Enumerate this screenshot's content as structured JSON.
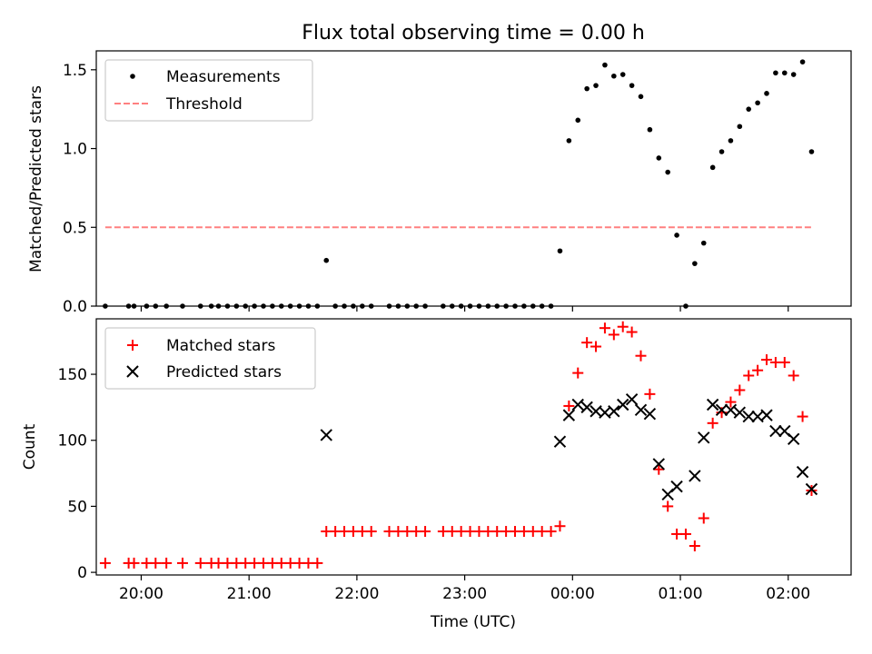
{
  "chart_data": [
    {
      "type": "scatter",
      "title": "Flux total observing time = 0.00 h",
      "ylabel": "Matched/Predicted stars",
      "xlabel": "",
      "xlim": [
        "19:35",
        "02:35"
      ],
      "ylim": [
        0,
        1.62
      ],
      "yticks": [
        0.0,
        0.5,
        1.0,
        1.5
      ],
      "ytick_labels": [
        "0.0",
        "0.5",
        "1.0",
        "1.5"
      ],
      "xticks": [
        "20:00",
        "21:00",
        "22:00",
        "23:00",
        "00:00",
        "01:00",
        "02:00"
      ],
      "show_xtick_labels": false,
      "grid": false,
      "legend": "top-left",
      "series": [
        {
          "name": "Measurements",
          "marker": "dot",
          "color": "#000000",
          "points": [
            [
              "19:40",
              0
            ],
            [
              "19:53",
              0
            ],
            [
              "19:56",
              0
            ],
            [
              "20:03",
              0
            ],
            [
              "20:08",
              0
            ],
            [
              "20:14",
              0
            ],
            [
              "20:23",
              0
            ],
            [
              "20:33",
              0
            ],
            [
              "20:39",
              0
            ],
            [
              "20:43",
              0
            ],
            [
              "20:48",
              0
            ],
            [
              "20:53",
              0
            ],
            [
              "20:58",
              0
            ],
            [
              "21:03",
              0
            ],
            [
              "21:08",
              0
            ],
            [
              "21:13",
              0
            ],
            [
              "21:18",
              0
            ],
            [
              "21:23",
              0
            ],
            [
              "21:28",
              0
            ],
            [
              "21:33",
              0
            ],
            [
              "21:38",
              0
            ],
            [
              "21:43",
              0.29
            ],
            [
              "21:48",
              0
            ],
            [
              "21:53",
              0
            ],
            [
              "21:58",
              0
            ],
            [
              "22:03",
              0
            ],
            [
              "22:08",
              0
            ],
            [
              "22:18",
              0
            ],
            [
              "22:23",
              0
            ],
            [
              "22:28",
              0
            ],
            [
              "22:33",
              0
            ],
            [
              "22:38",
              0
            ],
            [
              "22:48",
              0
            ],
            [
              "22:53",
              0
            ],
            [
              "22:58",
              0
            ],
            [
              "23:03",
              0
            ],
            [
              "23:08",
              0
            ],
            [
              "23:13",
              0
            ],
            [
              "23:18",
              0
            ],
            [
              "23:23",
              0
            ],
            [
              "23:28",
              0
            ],
            [
              "23:33",
              0
            ],
            [
              "23:38",
              0
            ],
            [
              "23:43",
              0
            ],
            [
              "23:48",
              0
            ],
            [
              "23:53",
              0.35
            ],
            [
              "23:58",
              1.05
            ],
            [
              "00:03",
              1.18
            ],
            [
              "00:08",
              1.38
            ],
            [
              "00:13",
              1.4
            ],
            [
              "00:18",
              1.53
            ],
            [
              "00:23",
              1.46
            ],
            [
              "00:28",
              1.47
            ],
            [
              "00:33",
              1.4
            ],
            [
              "00:38",
              1.33
            ],
            [
              "00:43",
              1.12
            ],
            [
              "00:48",
              0.94
            ],
            [
              "00:53",
              0.85
            ],
            [
              "00:58",
              0.45
            ],
            [
              "01:03",
              0.0
            ],
            [
              "01:08",
              0.27
            ],
            [
              "01:13",
              0.4
            ],
            [
              "01:18",
              0.88
            ],
            [
              "01:23",
              0.98
            ],
            [
              "01:28",
              1.05
            ],
            [
              "01:33",
              1.14
            ],
            [
              "01:38",
              1.25
            ],
            [
              "01:43",
              1.29
            ],
            [
              "01:48",
              1.35
            ],
            [
              "01:53",
              1.48
            ],
            [
              "01:58",
              1.48
            ],
            [
              "02:03",
              1.47
            ],
            [
              "02:08",
              1.55
            ],
            [
              "02:13",
              0.98
            ]
          ]
        },
        {
          "name": "Threshold",
          "marker": "dashed-line",
          "color": "#ff8080",
          "points": [
            [
              "19:40",
              0.5
            ],
            [
              "02:13",
              0.5
            ]
          ]
        }
      ]
    },
    {
      "type": "scatter",
      "title": "",
      "ylabel": "Count",
      "xlabel": "Time (UTC)",
      "xlim": [
        "19:35",
        "02:35"
      ],
      "ylim": [
        -2,
        192
      ],
      "yticks": [
        0,
        50,
        100,
        150
      ],
      "ytick_labels": [
        "0",
        "50",
        "100",
        "150"
      ],
      "xticks": [
        "20:00",
        "21:00",
        "22:00",
        "23:00",
        "00:00",
        "01:00",
        "02:00"
      ],
      "xtick_labels": [
        "20:00",
        "21:00",
        "22:00",
        "23:00",
        "00:00",
        "01:00",
        "02:00"
      ],
      "show_xtick_labels": true,
      "grid": false,
      "legend": "top-left",
      "series": [
        {
          "name": "Matched stars",
          "marker": "plus",
          "color": "#ff0000",
          "points": [
            [
              "19:40",
              7
            ],
            [
              "19:53",
              7
            ],
            [
              "19:56",
              7
            ],
            [
              "20:03",
              7
            ],
            [
              "20:08",
              7
            ],
            [
              "20:14",
              7
            ],
            [
              "20:23",
              7
            ],
            [
              "20:33",
              7
            ],
            [
              "20:39",
              7
            ],
            [
              "20:43",
              7
            ],
            [
              "20:48",
              7
            ],
            [
              "20:53",
              7
            ],
            [
              "20:58",
              7
            ],
            [
              "21:03",
              7
            ],
            [
              "21:08",
              7
            ],
            [
              "21:13",
              7
            ],
            [
              "21:18",
              7
            ],
            [
              "21:23",
              7
            ],
            [
              "21:28",
              7
            ],
            [
              "21:33",
              7
            ],
            [
              "21:38",
              7
            ],
            [
              "21:43",
              31
            ],
            [
              "21:48",
              31
            ],
            [
              "21:53",
              31
            ],
            [
              "21:58",
              31
            ],
            [
              "22:03",
              31
            ],
            [
              "22:08",
              31
            ],
            [
              "22:18",
              31
            ],
            [
              "22:23",
              31
            ],
            [
              "22:28",
              31
            ],
            [
              "22:33",
              31
            ],
            [
              "22:38",
              31
            ],
            [
              "22:48",
              31
            ],
            [
              "22:53",
              31
            ],
            [
              "22:58",
              31
            ],
            [
              "23:03",
              31
            ],
            [
              "23:08",
              31
            ],
            [
              "23:13",
              31
            ],
            [
              "23:18",
              31
            ],
            [
              "23:23",
              31
            ],
            [
              "23:28",
              31
            ],
            [
              "23:33",
              31
            ],
            [
              "23:38",
              31
            ],
            [
              "23:43",
              31
            ],
            [
              "23:48",
              31
            ],
            [
              "23:53",
              35
            ],
            [
              "23:58",
              126
            ],
            [
              "00:03",
              151
            ],
            [
              "00:08",
              174
            ],
            [
              "00:13",
              171
            ],
            [
              "00:18",
              185
            ],
            [
              "00:23",
              180
            ],
            [
              "00:28",
              186
            ],
            [
              "00:33",
              182
            ],
            [
              "00:38",
              164
            ],
            [
              "00:43",
              135
            ],
            [
              "00:48",
              78
            ],
            [
              "00:53",
              50
            ],
            [
              "00:58",
              29
            ],
            [
              "01:03",
              29
            ],
            [
              "01:08",
              20
            ],
            [
              "01:13",
              41
            ],
            [
              "01:18",
              113
            ],
            [
              "01:23",
              121
            ],
            [
              "01:28",
              129
            ],
            [
              "01:33",
              138
            ],
            [
              "01:38",
              149
            ],
            [
              "01:43",
              153
            ],
            [
              "01:48",
              161
            ],
            [
              "01:53",
              159
            ],
            [
              "01:58",
              159
            ],
            [
              "02:03",
              149
            ],
            [
              "02:08",
              118
            ],
            [
              "02:13",
              62
            ]
          ]
        },
        {
          "name": "Predicted stars",
          "marker": "x",
          "color": "#000000",
          "points": [
            [
              "21:43",
              104
            ],
            [
              "23:53",
              99
            ],
            [
              "23:58",
              119
            ],
            [
              "00:03",
              127
            ],
            [
              "00:08",
              125
            ],
            [
              "00:13",
              122
            ],
            [
              "00:18",
              121
            ],
            [
              "00:23",
              122
            ],
            [
              "00:28",
              127
            ],
            [
              "00:33",
              131
            ],
            [
              "00:38",
              123
            ],
            [
              "00:43",
              120
            ],
            [
              "00:48",
              82
            ],
            [
              "00:53",
              59
            ],
            [
              "00:58",
              65
            ],
            [
              "01:08",
              73
            ],
            [
              "01:13",
              102
            ],
            [
              "01:18",
              127
            ],
            [
              "01:23",
              123
            ],
            [
              "01:28",
              123
            ],
            [
              "01:33",
              121
            ],
            [
              "01:38",
              118
            ],
            [
              "01:43",
              118
            ],
            [
              "01:48",
              119
            ],
            [
              "01:53",
              107
            ],
            [
              "01:58",
              107
            ],
            [
              "02:03",
              101
            ],
            [
              "02:08",
              76
            ],
            [
              "02:13",
              63
            ]
          ]
        }
      ]
    }
  ]
}
